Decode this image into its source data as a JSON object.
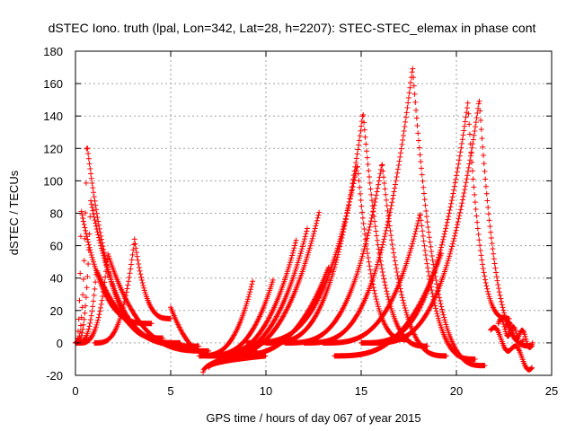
{
  "chart_data": {
    "type": "scatter",
    "title": "dSTEC Iono. truth (lpal, Lon=342, Lat=28, h=2207): STEC-STEC_elemax in phase cont",
    "xlabel": "GPS time / hours of day 067 of year 2015",
    "ylabel": "dSTEC  / TECUs",
    "xlim": [
      0,
      25
    ],
    "ylim": [
      -20,
      180
    ],
    "x_ticks": [
      0,
      5,
      10,
      15,
      20,
      25
    ],
    "y_ticks": [
      -20,
      0,
      20,
      40,
      60,
      80,
      100,
      120,
      140,
      160,
      180
    ],
    "grid": true,
    "marker": "plus",
    "color": "#ff0000",
    "arcs": [
      {
        "t0": 0.0,
        "tm": 0.3,
        "t1": 4.0,
        "peak": 82,
        "end": 12
      },
      {
        "t0": 0.0,
        "tm": 0.6,
        "t1": 4.6,
        "peak": 123,
        "end": 3
      },
      {
        "t0": 0.0,
        "tm": 0.8,
        "t1": 5.5,
        "peak": 88,
        "end": 0
      },
      {
        "t0": 0.1,
        "tm": 1.1,
        "t1": 6.5,
        "peak": 45,
        "end": -2
      },
      {
        "t0": 0.2,
        "tm": 1.7,
        "t1": 7.0,
        "peak": 55,
        "end": -5
      },
      {
        "t0": 1.0,
        "tm": 3.1,
        "t1": 5.0,
        "peak": 64,
        "end": 15
      },
      {
        "t0": 5.0,
        "tm": 5.0,
        "t1": 6.8,
        "peak": 22,
        "end": -6
      },
      {
        "t0": 6.5,
        "tm": 9.3,
        "t1": 9.3,
        "peak": 38,
        "end": 38
      },
      {
        "t0": 6.8,
        "tm": 10.4,
        "t1": 10.4,
        "peak": 40,
        "end": 40
      },
      {
        "t0": 7.0,
        "tm": 11.6,
        "t1": 11.6,
        "peak": 64,
        "end": 64
      },
      {
        "t0": 7.2,
        "tm": 12.2,
        "t1": 12.2,
        "peak": 72,
        "end": 72
      },
      {
        "t0": 7.4,
        "tm": 12.8,
        "t1": 12.8,
        "peak": 81,
        "end": 81
      },
      {
        "t0": 8.0,
        "tm": 13.3,
        "t1": 13.3,
        "peak": 47,
        "end": 47
      },
      {
        "t0": 9.0,
        "tm": 14.8,
        "t1": 17.5,
        "peak": 110,
        "end": 2
      },
      {
        "t0": 10.0,
        "tm": 15.1,
        "t1": 18.5,
        "peak": 142,
        "end": -2
      },
      {
        "t0": 11.0,
        "tm": 16.1,
        "t1": 19.5,
        "peak": 111,
        "end": -8
      },
      {
        "t0": 12.0,
        "tm": 17.7,
        "t1": 21.5,
        "peak": 170,
        "end": -14
      },
      {
        "t0": 13.0,
        "tm": 18.1,
        "t1": 21.0,
        "peak": 80,
        "end": -10
      },
      {
        "t0": 13.6,
        "tm": 19.2,
        "t1": 19.2,
        "peak": 55,
        "end": 55
      },
      {
        "t0": 15.0,
        "tm": 20.6,
        "t1": 22.8,
        "peak": 148,
        "end": 15
      },
      {
        "t0": 15.5,
        "tm": 21.2,
        "t1": 24.0,
        "peak": 150,
        "end": -2
      }
    ],
    "wiggles": [
      {
        "t0": 21.8,
        "t1": 24.0,
        "y0": 8,
        "y1": -15
      },
      {
        "t0": 22.2,
        "t1": 23.5,
        "y0": 12,
        "y1": 2
      },
      {
        "t0": 22.6,
        "t1": 24.0,
        "y0": 10,
        "y1": 0
      }
    ],
    "low_tracks": [
      {
        "t0": 6.7,
        "t1": 9.5,
        "y0": -18,
        "y1": -5
      },
      {
        "t0": 7.0,
        "t1": 10.0,
        "y0": -15,
        "y1": -8
      }
    ]
  }
}
